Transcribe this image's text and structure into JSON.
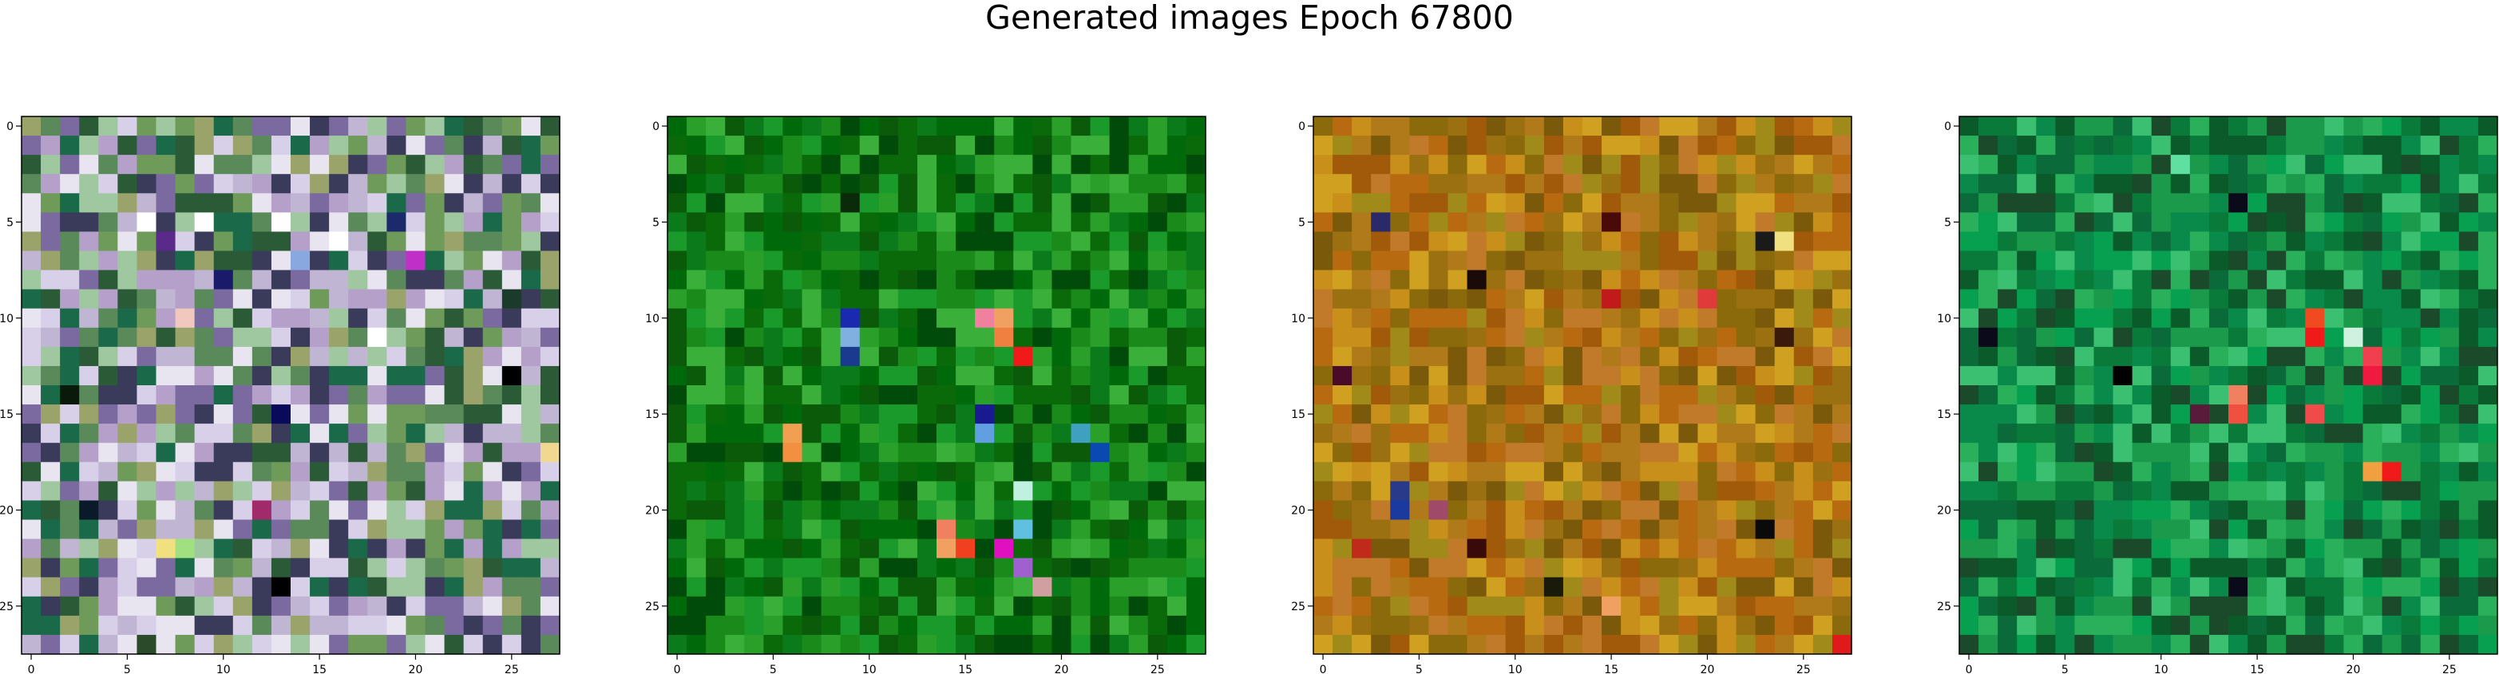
{
  "figure": {
    "title": "Generated images Epoch 67800"
  },
  "chart_data": [
    {
      "type": "heatmap",
      "title": "",
      "xlabel": "",
      "ylabel": "",
      "grid_size": [
        28,
        28
      ],
      "xlim": [
        -0.5,
        27.5
      ],
      "ylim": [
        27.5,
        -0.5
      ],
      "xticks": [
        0,
        5,
        10,
        15,
        20,
        25
      ],
      "yticks": [
        0,
        5,
        10,
        15,
        20,
        25
      ],
      "palette": [
        "#2a5a36",
        "#6e9a5a",
        "#9aa46a",
        "#5a8a5a",
        "#7a6aa0",
        "#c0b6d4",
        "#e8e4f0",
        "#3a3a5a",
        "#a0c8a0",
        "#1a6a4a",
        "#d8d0e8",
        "#b4a0c8"
      ],
      "features": [
        {
          "row": 5,
          "col": 6,
          "color": "#ffffff"
        },
        {
          "row": 5,
          "col": 9,
          "color": "#ffffff"
        },
        {
          "row": 5,
          "col": 13,
          "color": "#ffffff"
        },
        {
          "row": 5,
          "col": 19,
          "color": "#1a2a6a"
        },
        {
          "row": 6,
          "col": 7,
          "color": "#5a2a8a"
        },
        {
          "row": 6,
          "col": 16,
          "color": "#ffffff"
        },
        {
          "row": 7,
          "col": 20,
          "color": "#c030c8"
        },
        {
          "row": 7,
          "col": 14,
          "color": "#8aa8e0"
        },
        {
          "row": 8,
          "col": 10,
          "color": "#1a1a6a"
        },
        {
          "row": 9,
          "col": 25,
          "color": "#1a3a2a"
        },
        {
          "row": 10,
          "col": 8,
          "color": "#f0c8c0"
        },
        {
          "row": 11,
          "col": 18,
          "color": "#ffffff"
        },
        {
          "row": 13,
          "col": 25,
          "color": "#000000"
        },
        {
          "row": 14,
          "col": 2,
          "color": "#0a1a0a"
        },
        {
          "row": 15,
          "col": 13,
          "color": "#0a0a5a"
        },
        {
          "row": 17,
          "col": 27,
          "color": "#f0d890"
        },
        {
          "row": 20,
          "col": 3,
          "color": "#0a1a2a"
        },
        {
          "row": 20,
          "col": 12,
          "color": "#a02a6a"
        },
        {
          "row": 22,
          "col": 7,
          "color": "#f0e080"
        },
        {
          "row": 22,
          "col": 8,
          "color": "#a0e080"
        },
        {
          "row": 24,
          "col": 13,
          "color": "#000000"
        },
        {
          "row": 27,
          "col": 6,
          "color": "#2a4a2a"
        }
      ],
      "seed": 11
    },
    {
      "type": "heatmap",
      "title": "",
      "xlabel": "",
      "ylabel": "",
      "grid_size": [
        28,
        28
      ],
      "xlim": [
        -0.5,
        27.5
      ],
      "ylim": [
        27.5,
        -0.5
      ],
      "xticks": [
        0,
        5,
        10,
        15,
        20,
        25
      ],
      "yticks": [
        0,
        5,
        10,
        15,
        20,
        25
      ],
      "palette": [
        "#0a6a0a",
        "#1a8a1a",
        "#006a0a",
        "#2aa02a",
        "#0a5a0a",
        "#3ab03a",
        "#0a7a1a",
        "#1a9a2a",
        "#004a0a"
      ],
      "features": [
        {
          "row": 4,
          "col": 9,
          "color": "#0a2a0a"
        },
        {
          "row": 10,
          "col": 9,
          "color": "#1a2ab0"
        },
        {
          "row": 10,
          "col": 16,
          "color": "#f080a0"
        },
        {
          "row": 10,
          "col": 17,
          "color": "#f0a060"
        },
        {
          "row": 11,
          "col": 9,
          "color": "#80b0e0"
        },
        {
          "row": 11,
          "col": 17,
          "color": "#f08040"
        },
        {
          "row": 12,
          "col": 9,
          "color": "#1a3a90"
        },
        {
          "row": 12,
          "col": 18,
          "color": "#f01a1a"
        },
        {
          "row": 15,
          "col": 16,
          "color": "#1a1a90"
        },
        {
          "row": 16,
          "col": 6,
          "color": "#f0a050"
        },
        {
          "row": 16,
          "col": 16,
          "color": "#60a0e0"
        },
        {
          "row": 16,
          "col": 21,
          "color": "#40a0c0"
        },
        {
          "row": 17,
          "col": 6,
          "color": "#f09040"
        },
        {
          "row": 17,
          "col": 22,
          "color": "#0a4ab0"
        },
        {
          "row": 19,
          "col": 18,
          "color": "#c0f0e0"
        },
        {
          "row": 21,
          "col": 14,
          "color": "#f08060"
        },
        {
          "row": 21,
          "col": 18,
          "color": "#60c0e0"
        },
        {
          "row": 22,
          "col": 14,
          "color": "#f0a060"
        },
        {
          "row": 22,
          "col": 15,
          "color": "#f04020"
        },
        {
          "row": 22,
          "col": 17,
          "color": "#e010c0"
        },
        {
          "row": 23,
          "col": 18,
          "color": "#a060d0"
        },
        {
          "row": 24,
          "col": 19,
          "color": "#d0a0a0"
        }
      ],
      "seed": 23
    },
    {
      "type": "heatmap",
      "title": "",
      "xlabel": "",
      "ylabel": "",
      "grid_size": [
        28,
        28
      ],
      "xlim": [
        -0.5,
        27.5
      ],
      "ylim": [
        27.5,
        -0.5
      ],
      "xticks": [
        0,
        5,
        10,
        15,
        20,
        25
      ],
      "yticks": [
        0,
        5,
        10,
        15,
        20,
        25
      ],
      "palette": [
        "#b07a1a",
        "#c8901a",
        "#8a6a0a",
        "#a05a0a",
        "#d0a020",
        "#9a7010",
        "#b86a10",
        "#7a5a0a",
        "#c07a2a",
        "#a08a1a"
      ],
      "features": [
        {
          "row": 5,
          "col": 3,
          "color": "#2a2a6a"
        },
        {
          "row": 5,
          "col": 15,
          "color": "#4a0a0a"
        },
        {
          "row": 6,
          "col": 24,
          "color": "#f0e080"
        },
        {
          "row": 6,
          "col": 23,
          "color": "#1a1a1a"
        },
        {
          "row": 8,
          "col": 8,
          "color": "#1a0a0a"
        },
        {
          "row": 9,
          "col": 15,
          "color": "#c01a1a"
        },
        {
          "row": 9,
          "col": 20,
          "color": "#e03a3a"
        },
        {
          "row": 11,
          "col": 24,
          "color": "#3a1a0a"
        },
        {
          "row": 13,
          "col": 1,
          "color": "#4a0a2a"
        },
        {
          "row": 19,
          "col": 4,
          "color": "#2a3a8a"
        },
        {
          "row": 20,
          "col": 4,
          "color": "#1a3aa0"
        },
        {
          "row": 20,
          "col": 6,
          "color": "#a04a6a"
        },
        {
          "row": 21,
          "col": 23,
          "color": "#0a0a0a"
        },
        {
          "row": 22,
          "col": 2,
          "color": "#c02a1a"
        },
        {
          "row": 22,
          "col": 8,
          "color": "#3a0a0a"
        },
        {
          "row": 24,
          "col": 12,
          "color": "#1a1a0a"
        },
        {
          "row": 25,
          "col": 15,
          "color": "#f0a060"
        },
        {
          "row": 27,
          "col": 27,
          "color": "#e01a1a"
        }
      ],
      "seed": 37
    },
    {
      "type": "heatmap",
      "title": "",
      "xlabel": "",
      "ylabel": "",
      "grid_size": [
        28,
        28
      ],
      "xlim": [
        -0.5,
        27.5
      ],
      "ylim": [
        27.5,
        -0.5
      ],
      "xticks": [
        0,
        5,
        10,
        15,
        20,
        25
      ],
      "yticks": [
        0,
        5,
        10,
        15,
        20,
        25
      ],
      "palette": [
        "#0a7a3a",
        "#1a9a4a",
        "#0a5a2a",
        "#2ab05a",
        "#0a6a3a",
        "#3ac070",
        "#0a8a4a",
        "#1a4a2a",
        "#06a050"
      ],
      "features": [
        {
          "row": 2,
          "col": 11,
          "color": "#60e0a0"
        },
        {
          "row": 4,
          "col": 14,
          "color": "#0a0a1a"
        },
        {
          "row": 10,
          "col": 18,
          "color": "#f04a20"
        },
        {
          "row": 11,
          "col": 1,
          "color": "#0a0a1a"
        },
        {
          "row": 11,
          "col": 18,
          "color": "#f01a1a"
        },
        {
          "row": 11,
          "col": 20,
          "color": "#d0f0e0"
        },
        {
          "row": 12,
          "col": 21,
          "color": "#f04050"
        },
        {
          "row": 13,
          "col": 21,
          "color": "#f01a40"
        },
        {
          "row": 13,
          "col": 8,
          "color": "#000000"
        },
        {
          "row": 14,
          "col": 14,
          "color": "#f08060"
        },
        {
          "row": 15,
          "col": 14,
          "color": "#f05040"
        },
        {
          "row": 15,
          "col": 18,
          "color": "#f04a4a"
        },
        {
          "row": 15,
          "col": 12,
          "color": "#5a1a3a"
        },
        {
          "row": 18,
          "col": 21,
          "color": "#f0a040"
        },
        {
          "row": 18,
          "col": 22,
          "color": "#f01a1a"
        },
        {
          "row": 24,
          "col": 14,
          "color": "#0a0a1a"
        }
      ],
      "seed": 53
    }
  ]
}
